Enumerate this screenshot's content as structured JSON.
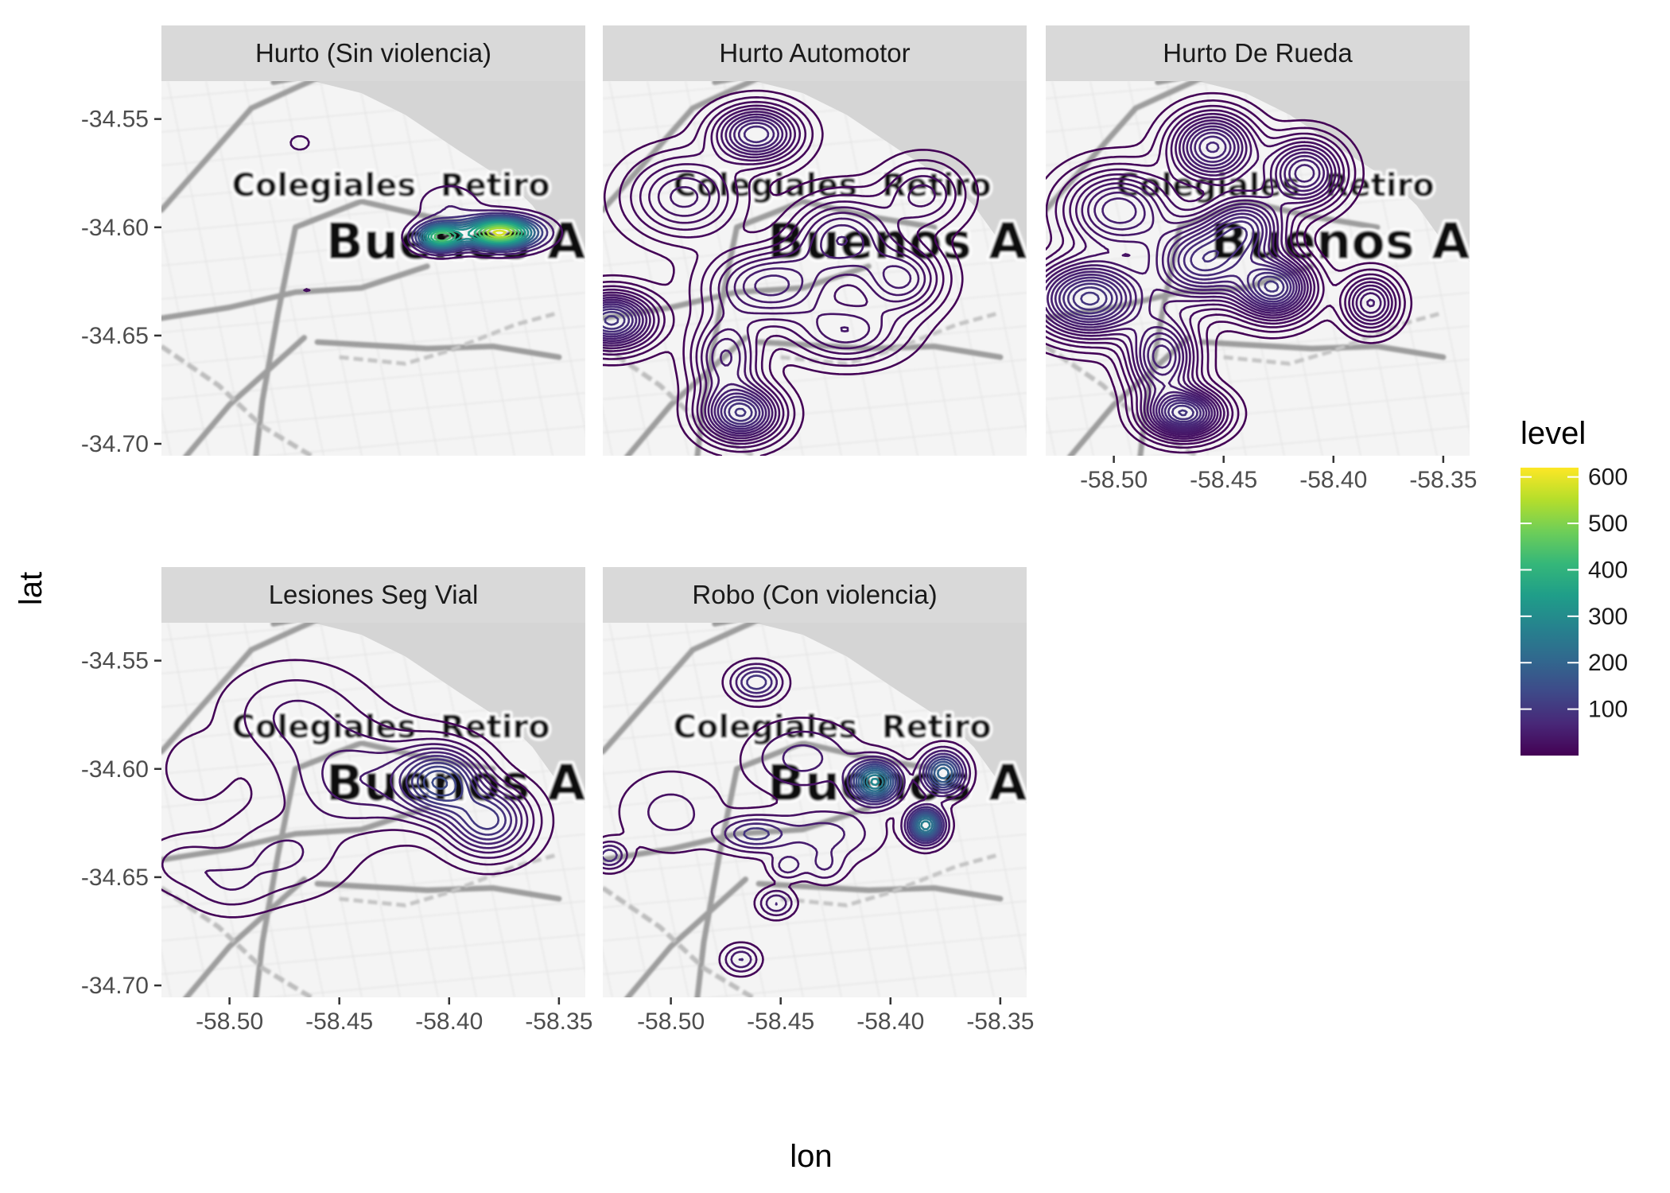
{
  "chart_data": {
    "type": "contour",
    "x_label": "lon",
    "y_label": "lat",
    "xlim": [
      -58.531,
      -58.338
    ],
    "ylim": [
      -34.7055,
      -34.5325
    ],
    "x_ticks": [
      -58.5,
      -58.45,
      -58.4,
      -58.35
    ],
    "x_tick_labels": [
      "-58.50",
      "-58.45",
      "-58.40",
      "-58.35"
    ],
    "y_ticks": [
      -34.55,
      -34.6,
      -34.65,
      -34.7
    ],
    "y_tick_labels": [
      "-34.55",
      "-34.60",
      "-34.65",
      "-34.70"
    ],
    "map_labels": [
      {
        "text": "Colegiales",
        "lon": -58.457,
        "lat": -34.5855,
        "size": "small"
      },
      {
        "text": "Retiro",
        "lon": -58.379,
        "lat": -34.5855,
        "size": "small"
      },
      {
        "text": "Buenos A",
        "lon": -58.397,
        "lat": -34.6145,
        "size": "large"
      }
    ],
    "legend": {
      "title": "level",
      "ticks": [
        100,
        200,
        300,
        400,
        500,
        600
      ],
      "tick_labels": [
        "100",
        "200",
        "300",
        "400",
        "500",
        "600"
      ],
      "range": [
        0,
        620
      ],
      "colors": [
        "#440154",
        "#482878",
        "#3e4a89",
        "#31688e",
        "#26828e",
        "#1f9e89",
        "#35b779",
        "#6ece58",
        "#b5de2b",
        "#fde725"
      ]
    },
    "panels": [
      {
        "title": "Hurto (Sin violencia)",
        "max_level": 600,
        "n_levels": 14,
        "bumps": [
          {
            "lon": -58.377,
            "lat": -34.6025,
            "sx": 0.011,
            "sy": 0.0045,
            "w": 1.0
          },
          {
            "lon": -58.404,
            "lat": -34.6045,
            "sx": 0.007,
            "sy": 0.004,
            "w": 0.75
          },
          {
            "lon": -58.4,
            "lat": -34.59,
            "sx": 0.01,
            "sy": 0.007,
            "w": 0.08
          },
          {
            "lon": -58.468,
            "lat": -34.561,
            "sx": 0.004,
            "sy": 0.003,
            "w": 0.06
          },
          {
            "lon": -58.465,
            "lat": -34.629,
            "sx": 0.008,
            "sy": 0.005,
            "w": 0.035
          },
          {
            "lon": -58.43,
            "lat": -34.627,
            "sx": 0.012,
            "sy": 0.006,
            "w": 0.03
          },
          {
            "lon": -58.52,
            "lat": -34.643,
            "sx": 0.005,
            "sy": 0.003,
            "w": 0.022
          },
          {
            "lon": -58.505,
            "lat": -34.611,
            "sx": 0.004,
            "sy": 0.003,
            "w": 0.022
          },
          {
            "lon": -58.478,
            "lat": -34.575,
            "sx": 0.003,
            "sy": 0.002,
            "w": 0.02
          }
        ]
      },
      {
        "title": "Hurto Automotor",
        "max_level": 100,
        "n_levels": 14,
        "bumps": [
          {
            "lon": -58.461,
            "lat": -34.557,
            "sx": 0.012,
            "sy": 0.008,
            "w": 0.8
          },
          {
            "lon": -58.527,
            "lat": -34.643,
            "sx": 0.012,
            "sy": 0.008,
            "w": 1.0
          },
          {
            "lon": -58.468,
            "lat": -34.686,
            "sx": 0.011,
            "sy": 0.008,
            "w": 0.95
          },
          {
            "lon": -58.455,
            "lat": -34.627,
            "sx": 0.018,
            "sy": 0.011,
            "w": 0.6
          },
          {
            "lon": -58.422,
            "lat": -34.605,
            "sx": 0.015,
            "sy": 0.012,
            "w": 0.55
          },
          {
            "lon": -58.395,
            "lat": -34.624,
            "sx": 0.012,
            "sy": 0.01,
            "w": 0.5
          },
          {
            "lon": -58.494,
            "lat": -34.586,
            "sx": 0.016,
            "sy": 0.012,
            "w": 0.45
          },
          {
            "lon": -58.475,
            "lat": -34.66,
            "sx": 0.01,
            "sy": 0.012,
            "w": 0.5
          },
          {
            "lon": -58.42,
            "lat": -34.648,
            "sx": 0.016,
            "sy": 0.009,
            "w": 0.4
          },
          {
            "lon": -58.385,
            "lat": -34.585,
            "sx": 0.012,
            "sy": 0.01,
            "w": 0.3
          }
        ]
      },
      {
        "title": "Hurto De Rueda",
        "max_level": 100,
        "n_levels": 16,
        "bumps": [
          {
            "lon": -58.511,
            "lat": -34.633,
            "sx": 0.016,
            "sy": 0.011,
            "w": 0.9
          },
          {
            "lon": -58.468,
            "lat": -34.686,
            "sx": 0.011,
            "sy": 0.007,
            "w": 0.85
          },
          {
            "lon": -58.427,
            "lat": -34.628,
            "sx": 0.011,
            "sy": 0.009,
            "w": 0.85
          },
          {
            "lon": -58.455,
            "lat": -34.563,
            "sx": 0.012,
            "sy": 0.01,
            "w": 0.7
          },
          {
            "lon": -58.413,
            "lat": -34.575,
            "sx": 0.011,
            "sy": 0.01,
            "w": 0.6
          },
          {
            "lon": -58.46,
            "lat": -34.616,
            "sx": 0.015,
            "sy": 0.012,
            "w": 0.75
          },
          {
            "lon": -58.498,
            "lat": -34.592,
            "sx": 0.016,
            "sy": 0.012,
            "w": 0.55
          },
          {
            "lon": -58.478,
            "lat": -34.66,
            "sx": 0.01,
            "sy": 0.012,
            "w": 0.6
          },
          {
            "lon": -58.383,
            "lat": -34.635,
            "sx": 0.008,
            "sy": 0.008,
            "w": 0.45
          },
          {
            "lon": -58.44,
            "lat": -34.6,
            "sx": 0.012,
            "sy": 0.01,
            "w": 0.6
          }
        ]
      },
      {
        "title": "Lesiones Seg Vial",
        "max_level": 150,
        "n_levels": 12,
        "bumps": [
          {
            "lon": -58.404,
            "lat": -34.606,
            "sx": 0.012,
            "sy": 0.01,
            "w": 1.0
          },
          {
            "lon": -58.382,
            "lat": -34.624,
            "sx": 0.012,
            "sy": 0.01,
            "w": 0.8
          },
          {
            "lon": -58.44,
            "lat": -34.605,
            "sx": 0.022,
            "sy": 0.015,
            "w": 0.35
          },
          {
            "lon": -58.47,
            "lat": -34.575,
            "sx": 0.02,
            "sy": 0.014,
            "w": 0.2
          },
          {
            "lon": -58.52,
            "lat": -34.644,
            "sx": 0.012,
            "sy": 0.008,
            "w": 0.15
          },
          {
            "lon": -58.5,
            "lat": -34.655,
            "sx": 0.012,
            "sy": 0.008,
            "w": 0.14
          },
          {
            "lon": -58.476,
            "lat": -34.64,
            "sx": 0.018,
            "sy": 0.012,
            "w": 0.2
          },
          {
            "lon": -58.515,
            "lat": -34.6,
            "sx": 0.01,
            "sy": 0.01,
            "w": 0.1
          }
        ]
      },
      {
        "title": "Robo (Con violencia)",
        "max_level": 300,
        "n_levels": 12,
        "bumps": [
          {
            "lon": -58.407,
            "lat": -34.606,
            "sx": 0.007,
            "sy": 0.006,
            "w": 1.0
          },
          {
            "lon": -58.384,
            "lat": -34.626,
            "sx": 0.005,
            "sy": 0.005,
            "w": 0.95
          },
          {
            "lon": -58.376,
            "lat": -34.602,
            "sx": 0.006,
            "sy": 0.006,
            "w": 0.75
          },
          {
            "lon": -58.461,
            "lat": -34.56,
            "sx": 0.007,
            "sy": 0.005,
            "w": 0.4
          },
          {
            "lon": -58.462,
            "lat": -34.63,
            "sx": 0.01,
            "sy": 0.005,
            "w": 0.35
          },
          {
            "lon": -58.528,
            "lat": -34.64,
            "sx": 0.005,
            "sy": 0.004,
            "w": 0.3
          },
          {
            "lon": -58.452,
            "lat": -34.662,
            "sx": 0.005,
            "sy": 0.004,
            "w": 0.25
          },
          {
            "lon": -58.468,
            "lat": -34.688,
            "sx": 0.005,
            "sy": 0.004,
            "w": 0.25
          },
          {
            "lon": -58.43,
            "lat": -34.63,
            "sx": 0.015,
            "sy": 0.008,
            "w": 0.2
          },
          {
            "lon": -58.44,
            "lat": -34.595,
            "sx": 0.015,
            "sy": 0.01,
            "w": 0.2
          },
          {
            "lon": -58.447,
            "lat": -34.645,
            "sx": 0.005,
            "sy": 0.004,
            "w": 0.2
          },
          {
            "lon": -58.5,
            "lat": -34.62,
            "sx": 0.015,
            "sy": 0.012,
            "w": 0.12
          },
          {
            "lon": -58.43,
            "lat": -34.645,
            "sx": 0.006,
            "sy": 0.005,
            "w": 0.15
          }
        ]
      }
    ]
  }
}
